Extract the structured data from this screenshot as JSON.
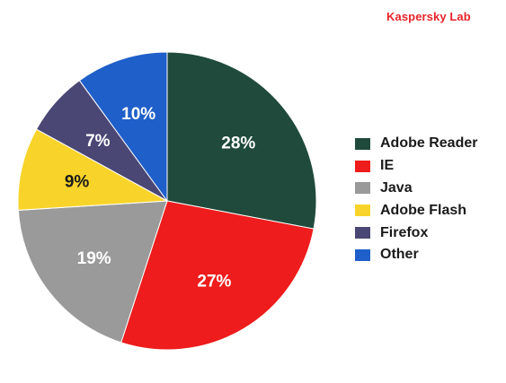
{
  "brand": "Kaspersky Lab",
  "chart_data": {
    "type": "pie",
    "title": "",
    "categories": [
      "Adobe Reader",
      "IE",
      "Java",
      "Adobe Flash",
      "Firefox",
      "Other"
    ],
    "values": [
      28,
      27,
      19,
      9,
      7,
      10
    ],
    "labels": [
      "28%",
      "27%",
      "19%",
      "9%",
      "7%",
      "10%"
    ],
    "colors": [
      "#1f4a3c",
      "#ee1c1c",
      "#9a9a9a",
      "#f8d42a",
      "#4a4775",
      "#1f5fc9"
    ],
    "label_colors": [
      "#ffffff",
      "#ffffff",
      "#ffffff",
      "#1a1a1a",
      "#ffffff",
      "#ffffff"
    ],
    "legend_position": "right",
    "start": "top",
    "direction": "clockwise"
  }
}
